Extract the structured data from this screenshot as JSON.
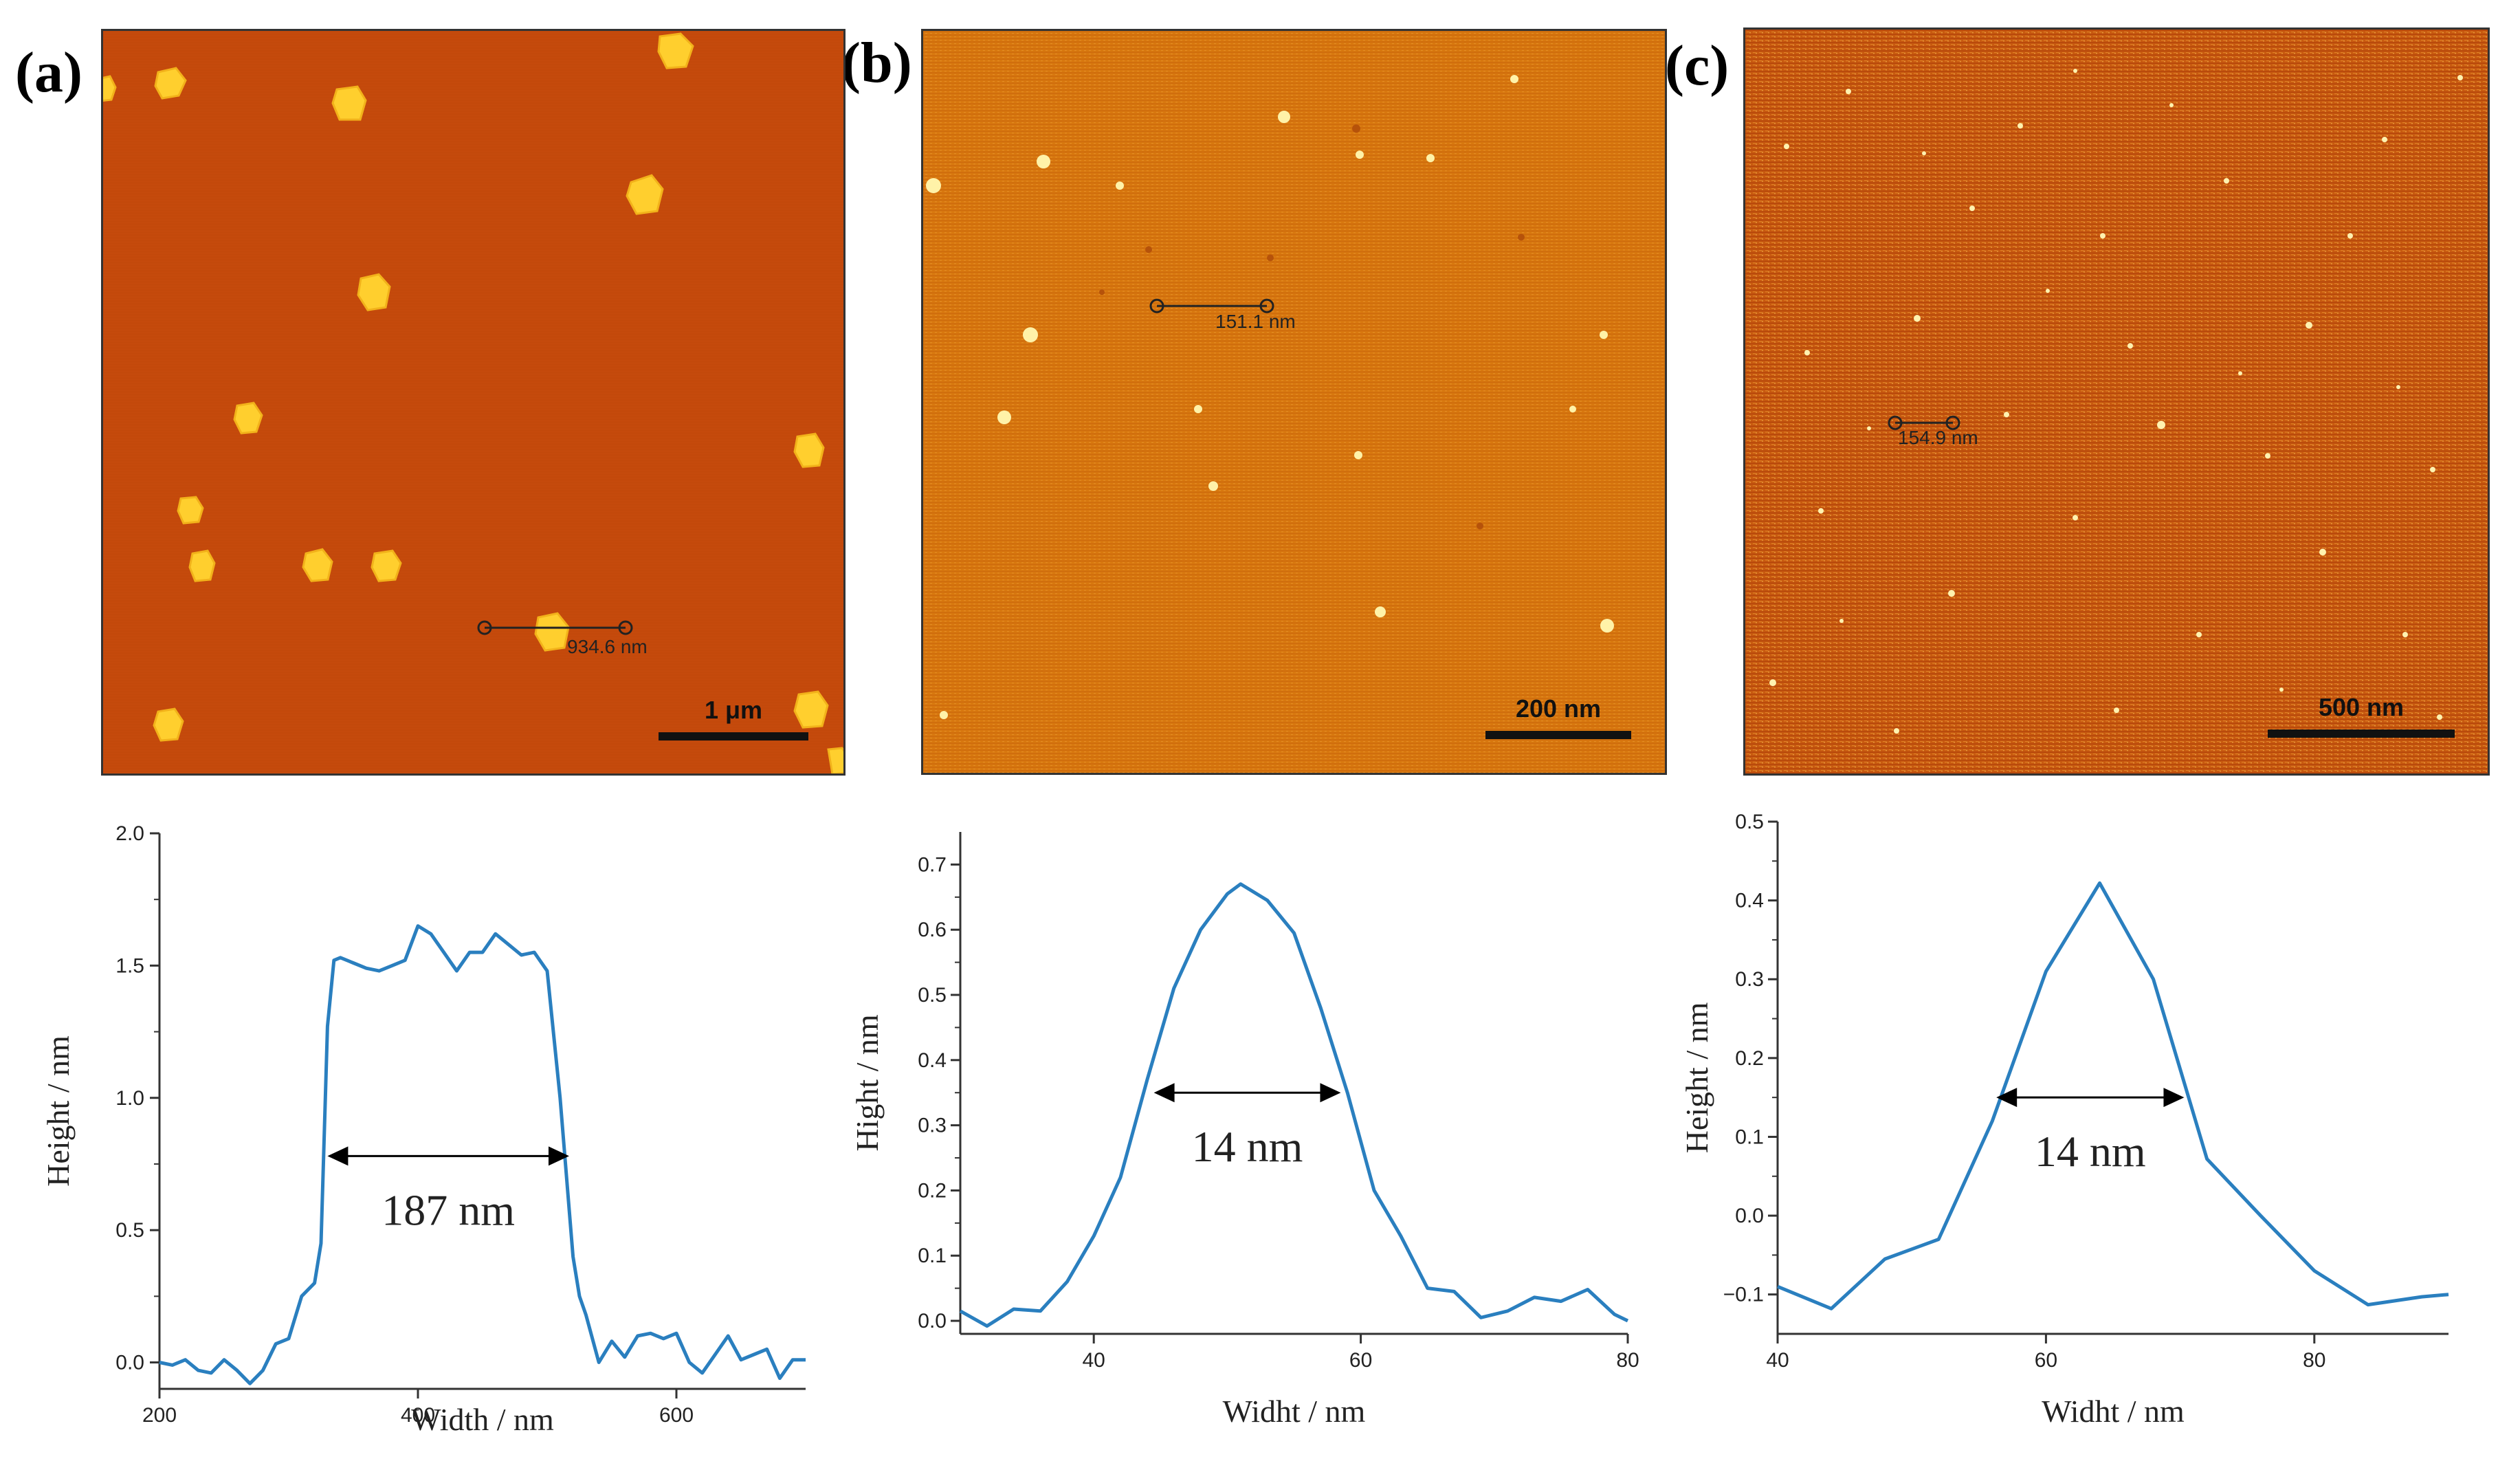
{
  "figure": {
    "panels": [
      {
        "id": "a",
        "label": "(a)",
        "scale_bar": "1 μm",
        "line_measure": "934.6 nm"
      },
      {
        "id": "b",
        "label": "(b)",
        "scale_bar": "200 nm",
        "line_measure": "151.1 nm"
      },
      {
        "id": "c",
        "label": "(c)",
        "scale_bar": "500 nm",
        "line_measure": "154.9 nm"
      }
    ]
  },
  "colors": {
    "line": "#2a7fbf",
    "afm_bg_a": "#c54a0c",
    "afm_bg_b": "#d8780f",
    "afm_bg_c": "#c85a10",
    "particle": "#ffd23a"
  },
  "chart_data": [
    {
      "type": "line",
      "xlabel": "Width / nm",
      "ylabel": "Height / nm",
      "xlim": [
        200,
        700
      ],
      "ylim": [
        -0.1,
        2.0
      ],
      "xticks": [
        200,
        400,
        600
      ],
      "yticks": [
        0.0,
        0.5,
        1.0,
        1.5,
        2.0
      ],
      "ytick_labels": [
        "0.0",
        "0.5",
        "1.0",
        "1.5",
        "2.0"
      ],
      "annotation": "187 nm",
      "arrow": {
        "x1": 330,
        "x2": 517,
        "y": 0.78
      },
      "x": [
        200,
        210,
        220,
        230,
        240,
        250,
        260,
        270,
        280,
        290,
        300,
        310,
        320,
        325,
        330,
        335,
        340,
        350,
        360,
        370,
        380,
        390,
        400,
        410,
        420,
        430,
        440,
        450,
        460,
        470,
        480,
        490,
        500,
        510,
        515,
        520,
        525,
        530,
        540,
        550,
        560,
        570,
        580,
        590,
        600,
        610,
        620,
        630,
        640,
        650,
        660,
        670,
        680,
        690,
        700
      ],
      "y": [
        0.0,
        -0.01,
        0.01,
        -0.03,
        -0.04,
        0.01,
        -0.03,
        -0.08,
        -0.03,
        0.07,
        0.09,
        0.25,
        0.3,
        0.45,
        1.27,
        1.52,
        1.53,
        1.51,
        1.49,
        1.48,
        1.5,
        1.52,
        1.65,
        1.62,
        1.55,
        1.48,
        1.55,
        1.55,
        1.62,
        1.58,
        1.54,
        1.55,
        1.48,
        1.0,
        0.7,
        0.4,
        0.25,
        0.18,
        0.0,
        0.08,
        0.02,
        0.1,
        0.11,
        0.09,
        0.11,
        0.0,
        -0.04,
        0.03,
        0.1,
        0.01,
        0.03,
        0.05,
        -0.06,
        0.01,
        0.01
      ]
    },
    {
      "type": "line",
      "xlabel": "Widht / nm",
      "ylabel": "Hight / nm",
      "xlim": [
        30,
        80
      ],
      "ylim": [
        -0.02,
        0.75
      ],
      "xticks": [
        40,
        60,
        80
      ],
      "yticks": [
        0.0,
        0.1,
        0.2,
        0.3,
        0.4,
        0.5,
        0.6,
        0.7
      ],
      "ytick_labels": [
        "0.0",
        "0.1",
        "0.2",
        "0.3",
        "0.4",
        "0.5",
        "0.6",
        "0.7"
      ],
      "annotation": "14 nm",
      "arrow": {
        "x1": 44.5,
        "x2": 58.5,
        "y": 0.35
      },
      "x": [
        30,
        32,
        34,
        36,
        38,
        40,
        42,
        44,
        46,
        48,
        50,
        51,
        53,
        55,
        57,
        59,
        61,
        63,
        65,
        67,
        69,
        71,
        73,
        75,
        77,
        79,
        80
      ],
      "y": [
        0.015,
        -0.008,
        0.018,
        0.015,
        0.06,
        0.13,
        0.22,
        0.37,
        0.51,
        0.6,
        0.655,
        0.67,
        0.645,
        0.595,
        0.48,
        0.35,
        0.2,
        0.13,
        0.05,
        0.045,
        0.005,
        0.015,
        0.036,
        0.03,
        0.048,
        0.01,
        0.0
      ]
    },
    {
      "type": "line",
      "xlabel": "Widht / nm",
      "ylabel": "Height / nm",
      "xlim": [
        40,
        90
      ],
      "ylim": [
        -0.15,
        0.5
      ],
      "xticks": [
        40,
        60,
        80
      ],
      "yticks": [
        -0.1,
        0.0,
        0.1,
        0.2,
        0.3,
        0.4,
        0.5
      ],
      "ytick_labels": [
        "−0.1",
        "0.0",
        "0.1",
        "0.2",
        "0.3",
        "0.4",
        "0.5"
      ],
      "annotation": "14 nm",
      "arrow": {
        "x1": 56.3,
        "x2": 70.3,
        "y": 0.15
      },
      "x": [
        40,
        44,
        48,
        52,
        56,
        60,
        64,
        68,
        72,
        76,
        80,
        84,
        88,
        90
      ],
      "y": [
        -0.09,
        -0.118,
        -0.055,
        -0.03,
        0.12,
        0.31,
        0.422,
        0.3,
        0.072,
        0.0,
        -0.07,
        -0.113,
        -0.103,
        -0.1
      ]
    }
  ]
}
